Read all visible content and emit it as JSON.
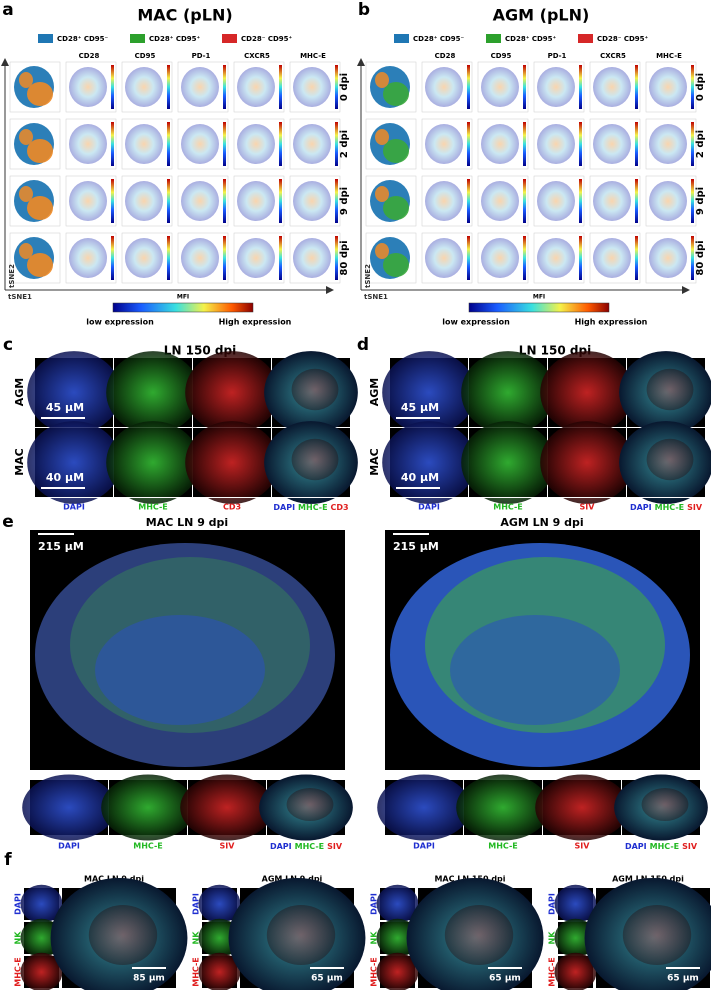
{
  "panel_a": {
    "letter": "a",
    "title": "MAC (pLN)",
    "legend": [
      "CD28⁺ CD95⁻",
      "CD28⁺ CD95⁺",
      "CD28⁻ CD95⁺"
    ],
    "columns": [
      "CD28",
      "CD95",
      "PD-1",
      "CXCR5",
      "MHC-E"
    ],
    "rows": [
      "0 dpi",
      "2 dpi",
      "9 dpi",
      "80 dpi"
    ],
    "y_axis": "tSNE2",
    "x_axis": "tSNE1",
    "colorbar_title": "MFI",
    "low_label": "low expression",
    "high_label": "High expression"
  },
  "panel_b": {
    "letter": "b",
    "title": "AGM (pLN)",
    "legend": [
      "CD28⁺ CD95⁻",
      "CD28⁺ CD95⁺",
      "CD28⁻ CD95⁺"
    ],
    "columns": [
      "CD28",
      "CD95",
      "PD-1",
      "CXCR5",
      "MHC-E"
    ],
    "rows": [
      "0 dpi",
      "2 dpi",
      "9 dpi",
      "80 dpi"
    ],
    "y_axis": "tSNE2",
    "x_axis": "tSNE1",
    "colorbar_title": "MFI",
    "low_label": "low expression",
    "high_label": "High expression"
  },
  "panel_c": {
    "letter": "c",
    "title": "LN 150 dpi",
    "rows": [
      "AGM",
      "MAC"
    ],
    "scale_bars": [
      "45 µM",
      "40 µM"
    ],
    "channels": [
      "DAPI",
      "MHC-E",
      "CD3"
    ],
    "merge": [
      "DAPI",
      "MHC-E",
      "CD3"
    ]
  },
  "panel_d": {
    "letter": "d",
    "title": "LN 150 dpi",
    "rows": [
      "AGM",
      "MAC"
    ],
    "scale_bars": [
      "45 µM",
      "40 µM"
    ],
    "channels": [
      "DAPI",
      "MHC-E",
      "SIV"
    ],
    "merge": [
      "DAPI",
      "MHC-E",
      "SIV"
    ]
  },
  "panel_e": {
    "letter": "e",
    "images": [
      {
        "title": "MAC LN 9 dpi",
        "scale_bar": "215 µM",
        "channels": [
          "DAPI",
          "MHC-E",
          "SIV"
        ],
        "merge": [
          "DAPI",
          "MHC-E",
          "SIV"
        ]
      },
      {
        "title": "AGM LN 9 dpi",
        "scale_bar": "215 µM",
        "channels": [
          "DAPI",
          "MHC-E",
          "SIV"
        ],
        "merge": [
          "DAPI",
          "MHC-E",
          "SIV"
        ]
      }
    ]
  },
  "panel_f": {
    "letter": "f",
    "images": [
      {
        "title": "MAC LN 9 dpi",
        "channels": [
          "DAPI",
          "NK",
          "MHC-E"
        ],
        "scale_bar": "85 µm"
      },
      {
        "title": "AGM LN 9 dpi",
        "channels": [
          "DAPI",
          "NK",
          "MHC-E"
        ],
        "scale_bar": "65 µm"
      },
      {
        "title": "MAC LN 150 dpi",
        "channels": [
          "DAPI",
          "NK",
          "MHC-E"
        ],
        "scale_bar": "65 µm"
      },
      {
        "title": "AGM LN 150 dpi",
        "channels": [
          "DAPI",
          "NK",
          "MHC-E"
        ],
        "scale_bar": "65 µm"
      }
    ]
  }
}
